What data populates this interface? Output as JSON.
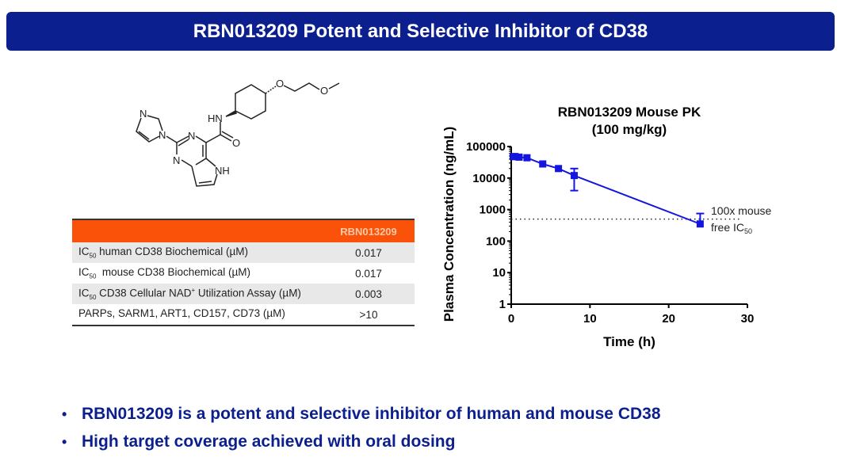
{
  "title": "RBN013209 Potent and Selective Inhibitor of CD38",
  "molecule": {
    "atoms": [
      "N",
      "N",
      "N",
      "N",
      "N",
      "HN",
      "NH",
      "O",
      "O",
      "O"
    ]
  },
  "table": {
    "header": "RBN013209",
    "rows": [
      {
        "pre": "IC",
        "sub": "50",
        "label": " human CD38 Biochemical (µM)",
        "value": "0.017"
      },
      {
        "pre": "IC",
        "sub": "50",
        "label": "  mouse CD38 Biochemical (µM)",
        "value": "0.017"
      },
      {
        "pre": "IC",
        "sub": "50",
        "label": " CD38 Cellular NAD",
        "sup": "+",
        "label2": " Utilization Assay (µM)",
        "value": "0.003"
      },
      {
        "pre": "",
        "sub": "",
        "label": "PARPs, SARM1, ART1, CD157, CD73 (µM)",
        "value": ">10"
      }
    ]
  },
  "chart_data": {
    "type": "line",
    "title": "RBN013209 Mouse PK",
    "subtitle": "(100 mg/kg)",
    "xlabel": "Time (h)",
    "ylabel": "Plasma Concentration (ng/mL)",
    "xlim": [
      0,
      30
    ],
    "ylim": [
      1,
      100000
    ],
    "yscale": "log",
    "xticks": [
      "0",
      "10",
      "20",
      "30"
    ],
    "yticks": [
      "1",
      "10",
      "100",
      "1000",
      "10000",
      "100000"
    ],
    "series": [
      {
        "name": "RBN013209",
        "color": "#1515e0",
        "x": [
          0.25,
          0.5,
          1,
          2,
          4,
          6,
          8,
          24
        ],
        "y": [
          48000,
          48000,
          46000,
          44000,
          28000,
          20000,
          12000,
          350
        ],
        "err_low": [
          null,
          null,
          null,
          null,
          null,
          null,
          4000,
          null
        ],
        "err_high": [
          null,
          null,
          null,
          null,
          null,
          null,
          20000,
          750
        ]
      }
    ],
    "reference_line": {
      "y": 500,
      "label1": "100x mouse",
      "label2": "free IC",
      "label2_sub": "50"
    }
  },
  "bullets": [
    "RBN013209 is a potent and selective inhibitor of human and mouse CD38",
    "High target coverage achieved with oral dosing"
  ]
}
